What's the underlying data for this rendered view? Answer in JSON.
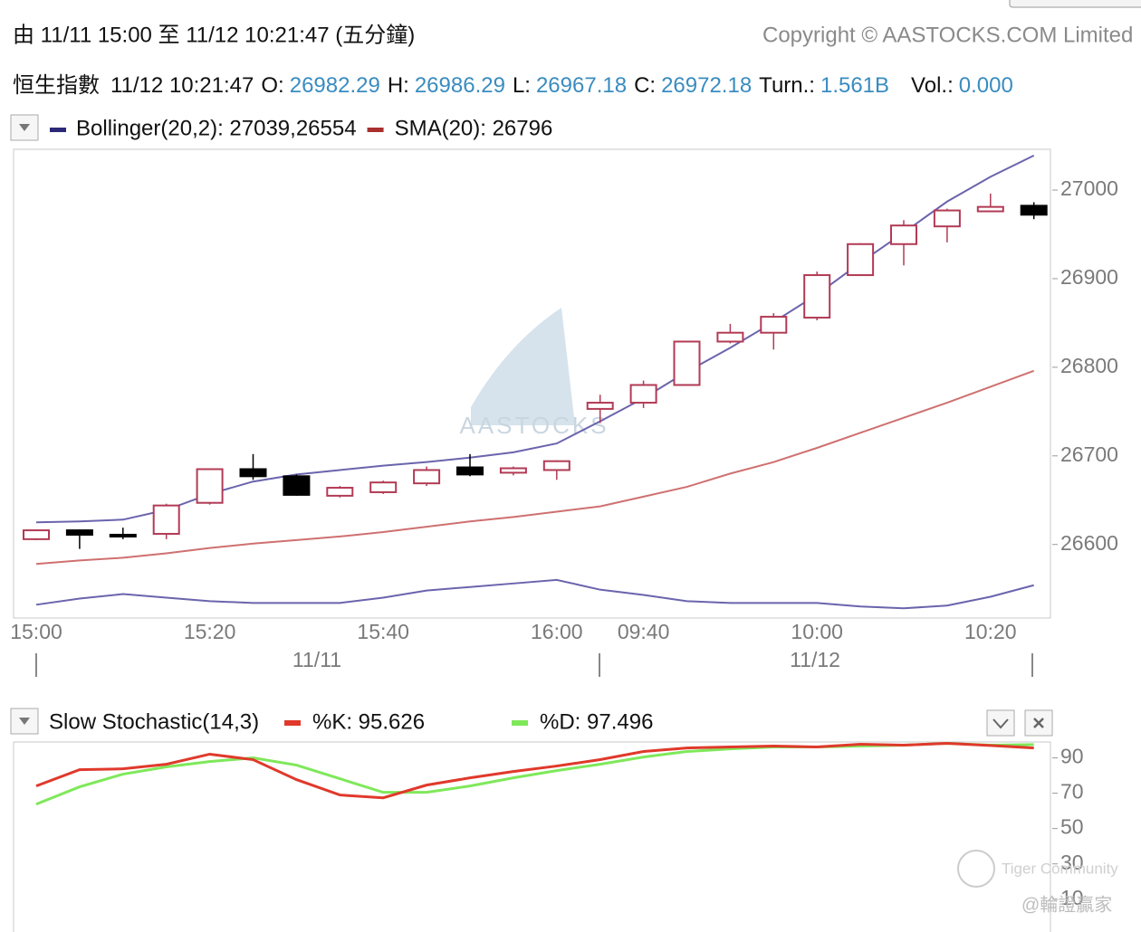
{
  "header": {
    "range_text": "由  11/11 15:00 至  11/12 10:21:47 (五分鐘)",
    "copyright": "Copyright © AASTOCKS.COM Limited",
    "quote": {
      "name": "恒生指數",
      "time": "11/12 10:21:47",
      "fields": [
        {
          "label": "O:",
          "value": 26982.29
        },
        {
          "label": "H:",
          "value": 26986.29
        },
        {
          "label": "L:",
          "value": 26967.18
        },
        {
          "label": "C:",
          "value": 26972.18
        },
        {
          "label": "Turn.:",
          "value": "1.561B"
        },
        {
          "label": "Vol.:",
          "value": "0.000"
        }
      ]
    }
  },
  "watermarks": {
    "logo": "AASTOCKS",
    "community": "Tiger Community",
    "author": "@輪證贏家"
  },
  "chart_data": [
    {
      "type": "candlestick",
      "categories": [
        "15:00",
        null,
        null,
        null,
        "15:20",
        null,
        null,
        null,
        "15:40",
        null,
        null,
        null,
        "16:00",
        null,
        "09:40",
        null,
        null,
        null,
        "10:00",
        null,
        null,
        null,
        "10:20",
        null
      ],
      "dates": [
        "11/11",
        "11/12"
      ],
      "open": [
        26606,
        26616,
        26611,
        26612,
        26647,
        26685,
        26677,
        26655,
        26659,
        26669,
        26687,
        26681,
        26684,
        26753,
        26760,
        26780,
        26829,
        26839,
        26856,
        26904,
        26939,
        26959,
        26976,
        26982.29
      ],
      "high": [
        26617,
        26617,
        26619,
        26646,
        26686,
        26702,
        26679,
        26666,
        26672,
        26688,
        26702,
        26688,
        26695,
        26769,
        26785,
        26830,
        26849,
        26861,
        26908,
        26940,
        26966,
        26979,
        26996,
        26986.29
      ],
      "low": [
        26605,
        26595,
        26606,
        26606,
        26645,
        26673,
        26655,
        26653,
        26657,
        26666,
        26677,
        26678,
        26673,
        26737,
        26754,
        26779,
        26827,
        26820,
        26853,
        26903,
        26915,
        26941,
        26975,
        26967.18
      ],
      "close": [
        26616,
        26611,
        26610,
        26644,
        26685,
        26677,
        26656,
        26664,
        26670,
        26684,
        26679,
        26686,
        26694,
        26760,
        26780,
        26829,
        26839,
        26857,
        26904,
        26939,
        26960,
        26977,
        26981,
        26972.18
      ],
      "up_color": "#b23a55",
      "down_color": "#000000",
      "bollinger": {
        "label": "Bollinger(20,2): 27039,26554",
        "color": "#2b2878",
        "line_color": "#6a64ad",
        "upper": [
          26625,
          26626,
          26628,
          26639,
          26657,
          26671,
          26679,
          26684,
          26689,
          26693,
          26698,
          26704,
          26714,
          26739,
          26765,
          26795,
          26822,
          26851,
          26882,
          26918,
          26952,
          26987,
          27015,
          27039
        ],
        "lower": [
          26532,
          26539,
          26544,
          26540,
          26536,
          26534,
          26534,
          26534,
          26540,
          26548,
          26552,
          26556,
          26560,
          26549,
          26543,
          26536,
          26534,
          26534,
          26534,
          26530,
          26528,
          26531,
          26541,
          26554
        ]
      },
      "sma": {
        "label": "SMA(20): 26796",
        "color": "#a8302e",
        "line_color": "#cf7070",
        "values": [
          26578,
          26582,
          26585,
          26590,
          26596,
          26601,
          26605,
          26609,
          26614,
          26620,
          26626,
          26631,
          26637,
          26643,
          26654,
          26665,
          26680,
          26693,
          26709,
          26726,
          26743,
          26760,
          26778,
          26796
        ]
      },
      "ylim": [
        26517,
        27046
      ],
      "yticks": [
        26600,
        26700,
        26800,
        26900,
        27000
      ]
    },
    {
      "type": "line",
      "title": "Slow Stochastic(14,3)",
      "series": [
        {
          "name": "%K: 95.626",
          "color": "#e0392b",
          "values": [
            74.1,
            83.3,
            83.8,
            86.4,
            92.1,
            89,
            77.7,
            69,
            67.4,
            74.6,
            78.7,
            82.3,
            85.4,
            89,
            93.6,
            95.6,
            96.2,
            96.7,
            96.2,
            97.7,
            97.2,
            98.2,
            97,
            95.6
          ]
        },
        {
          "name": "%D: 97.496",
          "color": "#7fe85a",
          "values": [
            63.8,
            73.6,
            80.8,
            84.9,
            87.9,
            90,
            85.9,
            78.2,
            70.5,
            70.5,
            74.1,
            78.7,
            82.8,
            86.4,
            90.5,
            93.6,
            95.1,
            96.2,
            96.2,
            96.7,
            97.2,
            98.2,
            97.2,
            97.5
          ]
        }
      ],
      "ylim": [
        -6,
        99
      ],
      "yticks": [
        90,
        70,
        50,
        30,
        10
      ]
    }
  ]
}
